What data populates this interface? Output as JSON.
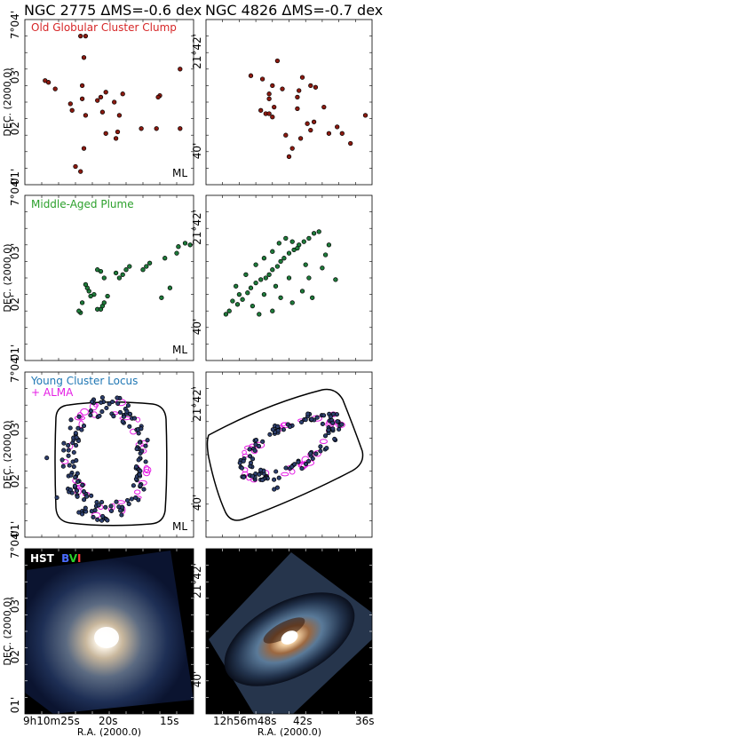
{
  "figure": {
    "columns": [
      {
        "title": "NGC 2775  ΔMS=-0.6 dex"
      },
      {
        "title": "NGC 4826  ΔMS=-0.7 dex"
      }
    ],
    "y_axis_label": "DEC. (2000.0)",
    "x_axis_label": "R.A. (2000.0)",
    "left_y_ticks": [
      "7°04'",
      "03'",
      "02'",
      "01'"
    ],
    "right_y_ticks": [
      "21°42'",
      "40'"
    ],
    "left_x_ticks": [
      "9h10m25s",
      "20s",
      "15s"
    ],
    "right_x_ticks": [
      "12h56m48s",
      "42s",
      "36s"
    ],
    "row_labels": [
      {
        "text": "Old Globular Cluster Clump",
        "color": "#d62728"
      },
      {
        "text": "Middle-Aged Plume",
        "color": "#2ca02c"
      },
      {
        "text": "Young Cluster Locus",
        "color": "#1f77b4"
      },
      {
        "text": "+ ALMA",
        "color": "#e51ee5"
      }
    ],
    "corner_tag": "ML",
    "hst_label": {
      "prefix": "HST",
      "b": "B",
      "v": "V",
      "i": "I"
    },
    "colors": {
      "old_fill": "#8b1a10",
      "middle_fill": "#1e7a3a",
      "young_fill": "#2d3f6e",
      "alma": "#e51ee5",
      "outline": "#000000",
      "hst_b": "#4a6cff",
      "hst_v": "#2bd12b",
      "hst_i": "#ff3b3b"
    }
  },
  "chart_data": [
    {
      "type": "scatter",
      "title": "NGC 2775  ΔMS=-0.6 dex",
      "series": [
        {
          "name": "Old Globular Cluster Clump",
          "marker": "point",
          "points": [
            [
              0.33,
              0.08
            ],
            [
              0.3,
              0.11
            ],
            [
              0.35,
              0.22
            ],
            [
              0.48,
              0.31
            ],
            [
              0.54,
              0.28
            ],
            [
              0.28,
              0.45
            ],
            [
              0.34,
              0.6
            ],
            [
              0.18,
              0.58
            ],
            [
              0.34,
              0.52
            ],
            [
              0.43,
              0.51
            ],
            [
              0.45,
              0.53
            ],
            [
              0.48,
              0.56
            ],
            [
              0.53,
              0.5
            ],
            [
              0.58,
              0.55
            ],
            [
              0.56,
              0.42
            ],
            [
              0.36,
              0.42
            ],
            [
              0.46,
              0.44
            ],
            [
              0.55,
              0.32
            ],
            [
              0.27,
              0.49
            ],
            [
              0.8,
              0.54
            ],
            [
              0.79,
              0.53
            ],
            [
              0.78,
              0.34
            ],
            [
              0.92,
              0.34
            ],
            [
              0.92,
              0.7
            ],
            [
              0.69,
              0.34
            ],
            [
              0.36,
              0.9
            ],
            [
              0.33,
              0.9
            ],
            [
              0.14,
              0.62
            ],
            [
              0.12,
              0.63
            ],
            [
              0.35,
              0.77
            ]
          ]
        }
      ],
      "ylabel": "DEC. (2000.0)",
      "grid": false
    },
    {
      "type": "scatter",
      "title": "NGC 4826  ΔMS=-0.7 dex",
      "series": [
        {
          "name": "Old Globular Cluster Clump",
          "marker": "point",
          "points": [
            [
              0.5,
              0.17
            ],
            [
              0.52,
              0.22
            ],
            [
              0.48,
              0.3
            ],
            [
              0.57,
              0.28
            ],
            [
              0.63,
              0.33
            ],
            [
              0.61,
              0.37
            ],
            [
              0.65,
              0.38
            ],
            [
              0.74,
              0.31
            ],
            [
              0.79,
              0.35
            ],
            [
              0.82,
              0.31
            ],
            [
              0.87,
              0.25
            ],
            [
              0.96,
              0.42
            ],
            [
              0.71,
              0.47
            ],
            [
              0.55,
              0.46
            ],
            [
              0.55,
              0.53
            ],
            [
              0.46,
              0.58
            ],
            [
              0.4,
              0.6
            ],
            [
              0.38,
              0.55
            ],
            [
              0.38,
              0.52
            ],
            [
              0.33,
              0.45
            ],
            [
              0.36,
              0.43
            ],
            [
              0.38,
              0.43
            ],
            [
              0.4,
              0.41
            ],
            [
              0.41,
              0.47
            ],
            [
              0.34,
              0.64
            ],
            [
              0.27,
              0.66
            ],
            [
              0.43,
              0.75
            ],
            [
              0.66,
              0.59
            ],
            [
              0.63,
              0.6
            ],
            [
              0.58,
              0.65
            ],
            [
              0.56,
              0.57
            ]
          ]
        }
      ],
      "grid": false
    },
    {
      "type": "scatter",
      "title": "",
      "series": [
        {
          "name": "Middle-Aged Plume",
          "marker": "point",
          "points": [
            [
              0.33,
              0.29
            ],
            [
              0.32,
              0.3
            ],
            [
              0.34,
              0.35
            ],
            [
              0.43,
              0.31
            ],
            [
              0.45,
              0.31
            ],
            [
              0.46,
              0.33
            ],
            [
              0.47,
              0.35
            ],
            [
              0.49,
              0.39
            ],
            [
              0.41,
              0.4
            ],
            [
              0.39,
              0.39
            ],
            [
              0.38,
              0.42
            ],
            [
              0.37,
              0.44
            ],
            [
              0.36,
              0.46
            ],
            [
              0.45,
              0.54
            ],
            [
              0.43,
              0.55
            ],
            [
              0.47,
              0.5
            ],
            [
              0.54,
              0.53
            ],
            [
              0.56,
              0.5
            ],
            [
              0.58,
              0.52
            ],
            [
              0.6,
              0.55
            ],
            [
              0.62,
              0.57
            ],
            [
              0.7,
              0.55
            ],
            [
              0.72,
              0.57
            ],
            [
              0.74,
              0.59
            ],
            [
              0.83,
              0.62
            ],
            [
              0.9,
              0.65
            ],
            [
              0.91,
              0.69
            ],
            [
              0.95,
              0.71
            ],
            [
              0.98,
              0.7
            ],
            [
              0.86,
              0.44
            ],
            [
              0.81,
              0.38
            ]
          ]
        }
      ],
      "ylabel": "DEC. (2000.0)",
      "grid": false
    },
    {
      "type": "scatter",
      "title": "",
      "series": [
        {
          "name": "Middle-Aged Plume",
          "marker": "point",
          "points": [
            [
              0.12,
              0.28
            ],
            [
              0.14,
              0.3
            ],
            [
              0.16,
              0.36
            ],
            [
              0.19,
              0.34
            ],
            [
              0.22,
              0.37
            ],
            [
              0.25,
              0.41
            ],
            [
              0.27,
              0.44
            ],
            [
              0.3,
              0.47
            ],
            [
              0.33,
              0.49
            ],
            [
              0.36,
              0.5
            ],
            [
              0.38,
              0.52
            ],
            [
              0.4,
              0.55
            ],
            [
              0.43,
              0.57
            ],
            [
              0.45,
              0.6
            ],
            [
              0.47,
              0.62
            ],
            [
              0.5,
              0.65
            ],
            [
              0.53,
              0.67
            ],
            [
              0.56,
              0.7
            ],
            [
              0.59,
              0.72
            ],
            [
              0.62,
              0.74
            ],
            [
              0.65,
              0.77
            ],
            [
              0.68,
              0.78
            ],
            [
              0.55,
              0.68
            ],
            [
              0.52,
              0.72
            ],
            [
              0.48,
              0.74
            ],
            [
              0.44,
              0.71
            ],
            [
              0.4,
              0.66
            ],
            [
              0.35,
              0.62
            ],
            [
              0.3,
              0.58
            ],
            [
              0.24,
              0.52
            ],
            [
              0.18,
              0.45
            ],
            [
              0.2,
              0.4
            ],
            [
              0.35,
              0.4
            ],
            [
              0.45,
              0.38
            ],
            [
              0.58,
              0.42
            ],
            [
              0.62,
              0.5
            ],
            [
              0.7,
              0.56
            ],
            [
              0.72,
              0.64
            ],
            [
              0.6,
              0.58
            ],
            [
              0.5,
              0.5
            ],
            [
              0.42,
              0.45
            ],
            [
              0.28,
              0.33
            ],
            [
              0.32,
              0.28
            ],
            [
              0.4,
              0.3
            ],
            [
              0.52,
              0.35
            ],
            [
              0.64,
              0.38
            ],
            [
              0.78,
              0.49
            ],
            [
              0.74,
              0.7
            ]
          ]
        }
      ],
      "grid": false
    },
    {
      "type": "scatter",
      "title": "",
      "series": [
        {
          "name": "Young Cluster Locus",
          "marker": "point",
          "shape": "ring",
          "center": [
            0.48,
            0.48
          ],
          "radii": [
            0.22,
            0.32
          ]
        },
        {
          "name": "+ ALMA",
          "marker": "contour",
          "shape": "ring",
          "center": [
            0.48,
            0.48
          ],
          "radii": [
            0.2,
            0.3
          ]
        }
      ],
      "ylabel": "DEC. (2000.0)",
      "grid": false
    },
    {
      "type": "scatter",
      "title": "",
      "series": [
        {
          "name": "Young Cluster Locus",
          "marker": "point",
          "shape": "tilted-ring",
          "center": [
            0.5,
            0.55
          ],
          "radii": [
            0.3,
            0.13
          ]
        },
        {
          "name": "+ ALMA",
          "marker": "contour",
          "shape": "tilted-ring",
          "center": [
            0.5,
            0.55
          ],
          "radii": [
            0.28,
            0.12
          ]
        }
      ],
      "grid": false
    },
    {
      "type": "image",
      "title": "",
      "hst_filters": [
        "B",
        "V",
        "I"
      ],
      "ylabel": "DEC. (2000.0)",
      "xlabel": "R.A. (2000.0)",
      "x_ticks": [
        "9h10m25s",
        "20s",
        "15s"
      ]
    },
    {
      "type": "image",
      "title": "",
      "xlabel": "R.A. (2000.0)",
      "x_ticks": [
        "12h56m48s",
        "42s",
        "36s"
      ]
    }
  ]
}
